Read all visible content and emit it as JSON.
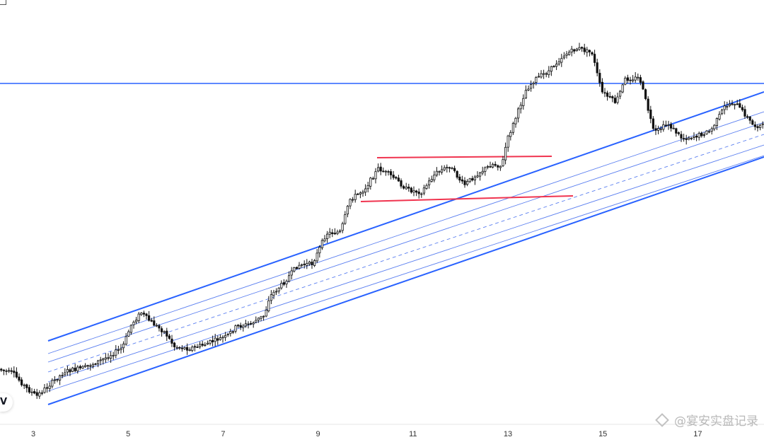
{
  "chart_data": {
    "type": "candlestick",
    "x_ticks": [
      "3",
      "5",
      "7",
      "9",
      "11",
      "13",
      "15",
      "17"
    ],
    "grid": false,
    "colors": {
      "candle": "#111111",
      "channel": "#2962ff",
      "channel_inner": "#5b7ff0",
      "range_lines": "#f0344f",
      "horizontal_level": "#2962ff",
      "background": "#ffffff"
    },
    "price_path": [
      [
        2.0,
        512
      ],
      [
        2.3,
        522
      ],
      [
        2.6,
        528
      ],
      [
        2.9,
        550
      ],
      [
        3.1,
        560
      ],
      [
        3.3,
        548
      ],
      [
        3.7,
        525
      ],
      [
        4.1,
        520
      ],
      [
        4.5,
        508
      ],
      [
        4.9,
        492
      ],
      [
        5.1,
        458
      ],
      [
        5.3,
        442
      ],
      [
        5.5,
        455
      ],
      [
        5.8,
        470
      ],
      [
        6.0,
        490
      ],
      [
        6.3,
        493
      ],
      [
        6.6,
        488
      ],
      [
        6.9,
        480
      ],
      [
        7.1,
        476
      ],
      [
        7.3,
        462
      ],
      [
        7.6,
        458
      ],
      [
        7.9,
        446
      ],
      [
        8.0,
        420
      ],
      [
        8.3,
        400
      ],
      [
        8.6,
        375
      ],
      [
        8.9,
        373
      ],
      [
        9.0,
        360
      ],
      [
        9.2,
        330
      ],
      [
        9.5,
        328
      ],
      [
        9.7,
        282
      ],
      [
        10.0,
        268
      ],
      [
        10.3,
        238
      ],
      [
        10.6,
        250
      ],
      [
        10.9,
        268
      ],
      [
        11.2,
        272
      ],
      [
        11.5,
        245
      ],
      [
        11.8,
        235
      ],
      [
        12.1,
        262
      ],
      [
        12.4,
        245
      ],
      [
        12.7,
        232
      ],
      [
        12.9,
        235
      ],
      [
        13.0,
        200
      ],
      [
        13.2,
        165
      ],
      [
        13.4,
        128
      ],
      [
        13.6,
        112
      ],
      [
        13.9,
        100
      ],
      [
        14.2,
        78
      ],
      [
        14.5,
        68
      ],
      [
        14.8,
        75
      ],
      [
        15.0,
        130
      ],
      [
        15.3,
        145
      ],
      [
        15.5,
        112
      ],
      [
        15.8,
        110
      ],
      [
        16.0,
        160
      ],
      [
        16.1,
        188
      ],
      [
        16.4,
        175
      ],
      [
        16.7,
        196
      ],
      [
        17.0,
        192
      ],
      [
        17.3,
        185
      ],
      [
        17.6,
        150
      ],
      [
        17.8,
        145
      ],
      [
        18.0,
        160
      ],
      [
        18.2,
        178
      ]
    ],
    "annotations": {
      "horizontal_level": "price level at y≈118 px-equivalent (resistance)",
      "range_top": "flat resistance over days 10–13",
      "range_bottom": "flat support over days 10–14",
      "channel": "ascending regression/parallel channel with 2 inner lines and a dashed midline"
    }
  },
  "watermark": {
    "text": "@宴安实盘记录"
  },
  "logo": {
    "text": "V"
  }
}
